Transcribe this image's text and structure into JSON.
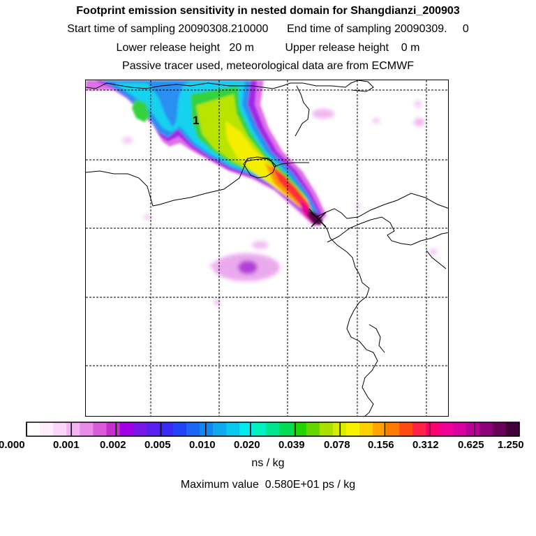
{
  "header": {
    "title": "Footprint emission sensitivity in nested domain for Shangdianzi_200903",
    "sampling_line": "Start time of sampling 20090308.210000      End time of sampling 20090309.     0",
    "release_line": "Lower release height   20 m          Upper release height    0 m",
    "tracer_line": "Passive tracer used, meteorological data are from ECMWF"
  },
  "map": {
    "contour_label": "1",
    "release_marker": "X"
  },
  "legend": {
    "colors": [
      "#ffffff",
      "#ffeefe",
      "#fbd6fb",
      "#f4b4f4",
      "#e98be9",
      "#d95bd9",
      "#c52fd0",
      "#a200e6",
      "#7b15e8",
      "#5b1ff0",
      "#3b2af6",
      "#2244f7",
      "#1b66f2",
      "#1288ef",
      "#0fa9ee",
      "#08c8ee",
      "#00ecec",
      "#00f0c0",
      "#00e68c",
      "#00dd55",
      "#22d400",
      "#66d600",
      "#a8e000",
      "#d8ec00",
      "#f8f200",
      "#ffd000",
      "#ffa400",
      "#ff7a00",
      "#ff4a14",
      "#ff2044",
      "#ff0070",
      "#f00094",
      "#d800a0",
      "#b80094",
      "#900078",
      "#6a0058",
      "#42003a"
    ],
    "ticks": [
      "0.000",
      "0.001",
      "0.002",
      "0.005",
      "0.010",
      "0.020",
      "0.039",
      "0.078",
      "0.156",
      "0.312",
      "0.625",
      "1.250"
    ],
    "unit": "ns / kg",
    "max_label": "Maximum value  0.580E+01 ps / kg"
  },
  "colors": {
    "frame": "#000000",
    "grid": "#000000",
    "coast": "#000000"
  }
}
